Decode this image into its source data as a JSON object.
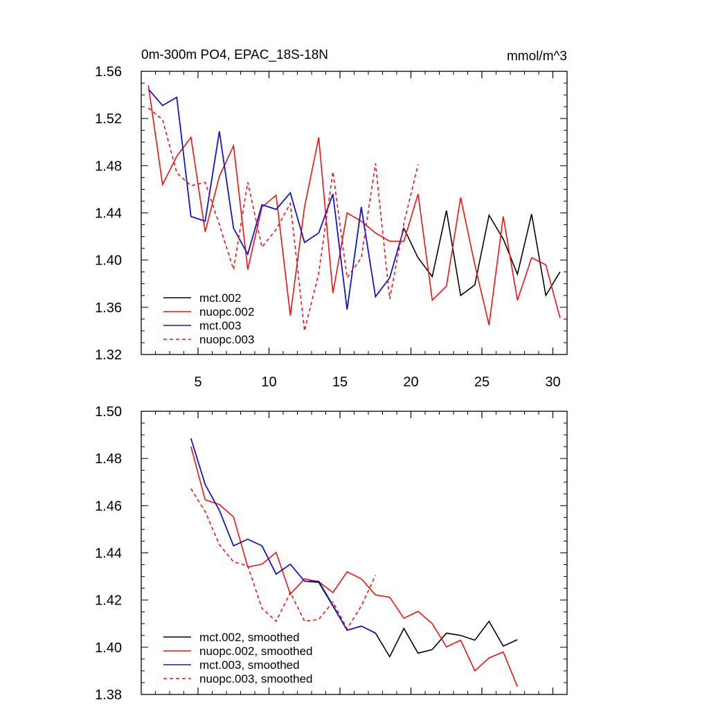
{
  "chart_data": [
    {
      "type": "line",
      "title_left": "0m-300m PO4, EPAC_18S-18N",
      "title_right": "mmol/m^3",
      "xlim": [
        1,
        31
      ],
      "ylim": [
        1.32,
        1.56
      ],
      "xticks": [
        5,
        10,
        15,
        20,
        25,
        30
      ],
      "yticks": [
        1.32,
        1.36,
        1.4,
        1.44,
        1.48,
        1.52,
        1.56
      ],
      "ytick_labels": [
        "1.32",
        "1.36",
        "1.40",
        "1.44",
        "1.48",
        "1.52",
        "1.56"
      ],
      "xtick_labels": [
        "5",
        "10",
        "15",
        "20",
        "25",
        "30"
      ],
      "show_x_labels": true,
      "legend": [
        "mct.002",
        "nuopc.002",
        "mct.003",
        "nuopc.003"
      ],
      "series": [
        {
          "name": "mct.002",
          "color": "#000000",
          "dash": false,
          "x": [
            1.5,
            2.5,
            3.5,
            4.5,
            5.5,
            6.5,
            7.5,
            8.5,
            9.5,
            10.5,
            11.5,
            12.5,
            13.5,
            14.5,
            15.5,
            16.5,
            17.5,
            18.5,
            19.5,
            20.5,
            21.5,
            22.5,
            23.5,
            24.5,
            25.5,
            26.5,
            27.5,
            28.5,
            29.5,
            30.5
          ],
          "y": [
            1.545,
            1.531,
            1.538,
            1.437,
            1.433,
            1.509,
            1.427,
            1.405,
            1.447,
            1.443,
            1.457,
            1.415,
            1.423,
            1.456,
            1.358,
            1.445,
            1.369,
            1.385,
            1.427,
            1.402,
            1.386,
            1.442,
            1.37,
            1.379,
            1.438,
            1.418,
            1.388,
            1.439,
            1.37,
            1.39
          ]
        },
        {
          "name": "nuopc.002",
          "color": "#ee1111",
          "dash": false,
          "x": [
            1.5,
            2.5,
            3.5,
            4.5,
            5.5,
            6.5,
            7.5,
            8.5,
            9.5,
            10.5,
            11.5,
            12.5,
            13.5,
            14.5,
            15.5,
            16.5,
            17.5,
            18.5,
            19.5,
            20.5,
            21.5,
            22.5,
            23.5,
            24.5,
            25.5,
            26.5,
            27.5,
            28.5,
            29.5,
            30.5
          ],
          "y": [
            1.548,
            1.464,
            1.488,
            1.504,
            1.424,
            1.471,
            1.497,
            1.392,
            1.445,
            1.455,
            1.353,
            1.445,
            1.504,
            1.372,
            1.44,
            1.433,
            1.423,
            1.416,
            1.416,
            1.456,
            1.366,
            1.378,
            1.453,
            1.396,
            1.345,
            1.437,
            1.366,
            1.402,
            1.396,
            1.351
          ]
        },
        {
          "name": "mct.003",
          "color": "#1111dd",
          "dash": false,
          "x": [
            1.5,
            2.5,
            3.5,
            4.5,
            5.5,
            6.5,
            7.5,
            8.5,
            9.5,
            10.5,
            11.5,
            12.5,
            13.5,
            14.5,
            15.5,
            16.5,
            17.5,
            18.5,
            19.5
          ],
          "y": [
            1.545,
            1.531,
            1.538,
            1.437,
            1.433,
            1.509,
            1.427,
            1.405,
            1.447,
            1.443,
            1.457,
            1.415,
            1.423,
            1.456,
            1.358,
            1.445,
            1.369,
            1.385,
            1.427
          ]
        },
        {
          "name": "nuopc.003",
          "color": "#ee1111",
          "dash": true,
          "x": [
            1.5,
            2.5,
            3.5,
            4.5,
            5.5,
            6.5,
            7.5,
            8.5,
            9.5,
            10.5,
            11.5,
            12.5,
            13.5,
            14.5,
            15.5,
            16.5,
            17.5,
            18.5,
            19.5,
            20.5
          ],
          "y": [
            1.529,
            1.519,
            1.474,
            1.463,
            1.466,
            1.43,
            1.392,
            1.466,
            1.411,
            1.426,
            1.448,
            1.34,
            1.389,
            1.475,
            1.385,
            1.402,
            1.482,
            1.367,
            1.431,
            1.481
          ]
        }
      ]
    },
    {
      "type": "line",
      "title_left": "",
      "title_right": "",
      "xlim": [
        1,
        31
      ],
      "ylim": [
        1.38,
        1.5
      ],
      "xticks": [
        5,
        10,
        15,
        20,
        25,
        30
      ],
      "yticks": [
        1.38,
        1.4,
        1.42,
        1.44,
        1.46,
        1.48,
        1.5
      ],
      "ytick_labels": [
        "1.38",
        "1.40",
        "1.42",
        "1.44",
        "1.46",
        "1.48",
        "1.50"
      ],
      "xtick_labels": [],
      "show_x_labels": false,
      "legend": [
        "mct.002, smoothed",
        "nuopc.002, smoothed",
        "mct.003, smoothed",
        "nuopc.003, smoothed"
      ],
      "series": [
        {
          "name": "mct.002, smoothed",
          "color": "#000000",
          "dash": false,
          "x": [
            4.5,
            5.5,
            6.5,
            7.5,
            8.5,
            9.5,
            10.5,
            11.5,
            12.5,
            13.5,
            14.5,
            15.5,
            16.5,
            17.5,
            18.5,
            19.5,
            20.5,
            21.5,
            22.5,
            23.5,
            24.5,
            25.5,
            26.5,
            27.5
          ],
          "y": [
            1.4885,
            1.469,
            1.458,
            1.443,
            1.4458,
            1.443,
            1.431,
            1.4352,
            1.428,
            1.4275,
            1.4175,
            1.4072,
            1.409,
            1.406,
            1.396,
            1.408,
            1.3975,
            1.399,
            1.406,
            1.405,
            1.403,
            1.411,
            1.4005,
            1.4032
          ]
        },
        {
          "name": "nuopc.002, smoothed",
          "color": "#ee1111",
          "dash": false,
          "x": [
            4.5,
            5.5,
            6.5,
            7.5,
            8.5,
            9.5,
            10.5,
            11.5,
            12.5,
            13.5,
            14.5,
            15.5,
            16.5,
            17.5,
            18.5,
            19.5,
            20.5,
            21.5,
            22.5,
            23.5,
            24.5,
            25.5,
            26.5,
            27.5
          ],
          "y": [
            1.485,
            1.4625,
            1.4605,
            1.4552,
            1.434,
            1.4352,
            1.4402,
            1.4225,
            1.429,
            1.4278,
            1.4232,
            1.432,
            1.429,
            1.4222,
            1.4212,
            1.4123,
            1.4152,
            1.41,
            1.4002,
            1.403,
            1.39,
            1.3955,
            1.398,
            1.3833
          ]
        },
        {
          "name": "mct.003, smoothed",
          "color": "#1111dd",
          "dash": false,
          "x": [
            4.5,
            5.5,
            6.5,
            7.5,
            8.5,
            9.5,
            10.5,
            11.5,
            12.5,
            13.5,
            14.5,
            15.5,
            16.5,
            17.5
          ],
          "y": [
            1.4885,
            1.469,
            1.458,
            1.443,
            1.4458,
            1.443,
            1.431,
            1.4352,
            1.428,
            1.428,
            1.4178,
            1.4072,
            1.409,
            1.406
          ]
        },
        {
          "name": "nuopc.003, smoothed",
          "color": "#ee1111",
          "dash": true,
          "x": [
            4.5,
            5.5,
            6.5,
            7.5,
            8.5,
            9.5,
            10.5,
            11.5,
            12.5,
            13.5,
            14.5,
            15.5,
            16.5,
            17.5
          ],
          "y": [
            1.4672,
            1.4575,
            1.4435,
            1.4362,
            1.4345,
            1.4165,
            1.411,
            1.4232,
            1.411,
            1.4118,
            1.4192,
            1.4078,
            1.4175,
            1.4305
          ]
        }
      ]
    }
  ]
}
